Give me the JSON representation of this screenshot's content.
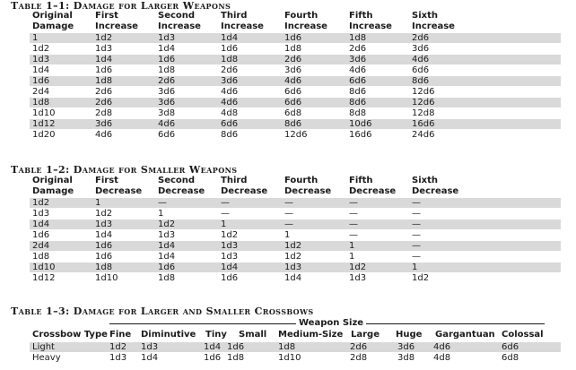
{
  "table1": {
    "title": "Table 1–1: Damage for Larger Weapons",
    "headers": [
      [
        "Original",
        "Damage"
      ],
      [
        "First",
        "Increase"
      ],
      [
        "Second",
        "Increase"
      ],
      [
        "Third",
        "Increase"
      ],
      [
        "Fourth",
        "Increase"
      ],
      [
        "Fifth",
        "Increase"
      ],
      [
        "Sixth",
        "Increase"
      ]
    ],
    "rows": [
      [
        "1",
        "1d2",
        "1d3",
        "1d4",
        "1d6",
        "1d8",
        "2d6"
      ],
      [
        "1d2",
        "1d3",
        "1d4",
        "1d6",
        "1d8",
        "2d6",
        "3d6"
      ],
      [
        "1d3",
        "1d4",
        "1d6",
        "1d8",
        "2d6",
        "3d6",
        "4d6"
      ],
      [
        "1d4",
        "1d6",
        "1d8",
        "2d6",
        "3d6",
        "4d6",
        "6d6"
      ],
      [
        "1d6",
        "1d8",
        "2d6",
        "3d6",
        "4d6",
        "6d6",
        "8d6"
      ],
      [
        "2d4",
        "2d6",
        "3d6",
        "4d6",
        "6d6",
        "8d6",
        "12d6"
      ],
      [
        "1d8",
        "2d6",
        "3d6",
        "4d6",
        "6d6",
        "8d6",
        "12d6"
      ],
      [
        "1d10",
        "2d8",
        "3d8",
        "4d8",
        "6d8",
        "8d8",
        "12d8"
      ],
      [
        "1d12",
        "3d6",
        "4d6",
        "6d6",
        "8d6",
        "10d6",
        "16d6"
      ],
      [
        "1d20",
        "4d6",
        "6d6",
        "8d6",
        "12d6",
        "16d6",
        "24d6"
      ]
    ]
  },
  "table2": {
    "title": "Table 1–2: Damage for Smaller Weapons",
    "headers": [
      [
        "Original",
        "Damage"
      ],
      [
        "First",
        "Decrease"
      ],
      [
        "Second",
        "Decrease"
      ],
      [
        "Third",
        "Decrease"
      ],
      [
        "Fourth",
        "Decrease"
      ],
      [
        "Fifth",
        "Decrease"
      ],
      [
        "Sixth",
        "Decrease"
      ]
    ],
    "rows": [
      [
        "1d2",
        "1",
        "—",
        "—",
        "—",
        "—",
        "—"
      ],
      [
        "1d3",
        "1d2",
        "1",
        "—",
        "—",
        "—",
        "—"
      ],
      [
        "1d4",
        "1d3",
        "1d2",
        "1",
        "—",
        "—",
        "—"
      ],
      [
        "1d6",
        "1d4",
        "1d3",
        "1d2",
        "1",
        "—",
        "—"
      ],
      [
        "2d4",
        "1d6",
        "1d4",
        "1d3",
        "1d2",
        "1",
        "—"
      ],
      [
        "1d8",
        "1d6",
        "1d4",
        "1d3",
        "1d2",
        "1",
        "—"
      ],
      [
        "1d10",
        "1d8",
        "1d6",
        "1d4",
        "1d3",
        "1d2",
        "1"
      ],
      [
        "1d12",
        "1d10",
        "1d8",
        "1d6",
        "1d4",
        "1d3",
        "1d2"
      ]
    ]
  },
  "table3": {
    "title": "Table 1–3: Damage for Larger and Smaller Crossbows",
    "group_label": "Weapon Size",
    "headers": [
      "Crossbow Type",
      "Fine",
      "Diminutive",
      "Tiny",
      "Small",
      "Medium-Size",
      "Large",
      "Huge",
      "Gargantuan",
      "Colossal"
    ],
    "rows": [
      [
        "Light",
        "1d2",
        "1d3",
        "1d4",
        "1d6",
        "1d8",
        "2d6",
        "3d6",
        "4d6",
        "6d6"
      ],
      [
        "Heavy",
        "1d3",
        "1d4",
        "1d6",
        "1d8",
        "1d10",
        "2d8",
        "3d8",
        "4d8",
        "6d8"
      ]
    ]
  }
}
